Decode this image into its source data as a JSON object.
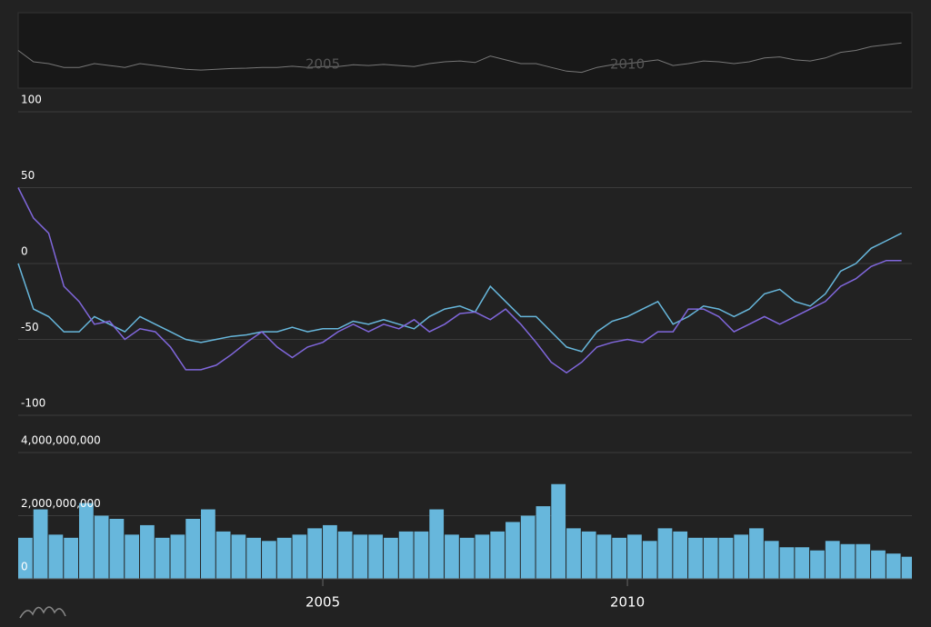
{
  "chart_data": [
    {
      "type": "line",
      "x": [
        2000,
        2000.25,
        2000.5,
        2000.75,
        2001,
        2001.25,
        2001.5,
        2001.75,
        2002,
        2002.25,
        2002.5,
        2002.75,
        2003,
        2003.25,
        2003.5,
        2003.75,
        2004,
        2004.25,
        2004.5,
        2004.75,
        2005,
        2005.25,
        2005.5,
        2005.75,
        2006,
        2006.25,
        2006.5,
        2006.75,
        2007,
        2007.25,
        2007.5,
        2007.75,
        2008,
        2008.25,
        2008.5,
        2008.75,
        2009,
        2009.25,
        2009.5,
        2009.75,
        2010,
        2010.25,
        2010.5,
        2010.75,
        2011,
        2011.25,
        2011.5,
        2011.75,
        2012,
        2012.25,
        2012.5,
        2012.75,
        2013,
        2013.25,
        2013.5,
        2013.75,
        2014,
        2014.25,
        2014.5
      ],
      "xlim": [
        2000,
        2014.67
      ],
      "xticks": [
        2005,
        2010
      ],
      "ylim": [
        -100,
        100
      ],
      "yticks": [
        -100,
        -50,
        0,
        50,
        100
      ],
      "grid": true,
      "series": [
        {
          "color": "#67b7dc",
          "values": [
            0,
            -30,
            -35,
            -45,
            -45,
            -35,
            -40,
            -45,
            -35,
            -40,
            -45,
            -50,
            -52,
            -50,
            -48,
            -47,
            -45,
            -45,
            -42,
            -45,
            -43,
            -43,
            -38,
            -40,
            -37,
            -40,
            -43,
            -35,
            -30,
            -28,
            -32,
            -15,
            -25,
            -35,
            -35,
            -45,
            -55,
            -58,
            -45,
            -38,
            -35,
            -30,
            -25,
            -40,
            -35,
            -28,
            -30,
            -35,
            -30,
            -20,
            -17,
            -25,
            -28,
            -20,
            -5,
            0,
            10,
            15,
            20
          ]
        },
        {
          "color": "#8067dc",
          "values": [
            50,
            30,
            20,
            -15,
            -25,
            -40,
            -38,
            -50,
            -43,
            -45,
            -55,
            -70,
            -70,
            -67,
            -60,
            -52,
            -45,
            -55,
            -62,
            -55,
            -52,
            -45,
            -40,
            -45,
            -40,
            -43,
            -37,
            -45,
            -40,
            -33,
            -32,
            -37,
            -30,
            -40,
            -52,
            -65,
            -72,
            -65,
            -55,
            -52,
            -50,
            -52,
            -45,
            -45,
            -30,
            -30,
            -35,
            -45,
            -40,
            -35,
            -40,
            -35,
            -30,
            -25,
            -15,
            -10,
            -2,
            2,
            2
          ]
        }
      ]
    },
    {
      "type": "bar",
      "x": [
        2000,
        2000.25,
        2000.5,
        2000.75,
        2001,
        2001.25,
        2001.5,
        2001.75,
        2002,
        2002.25,
        2002.5,
        2002.75,
        2003,
        2003.25,
        2003.5,
        2003.75,
        2004,
        2004.25,
        2004.5,
        2004.75,
        2005,
        2005.25,
        2005.5,
        2005.75,
        2006,
        2006.25,
        2006.5,
        2006.75,
        2007,
        2007.25,
        2007.5,
        2007.75,
        2008,
        2008.25,
        2008.5,
        2008.75,
        2009,
        2009.25,
        2009.5,
        2009.75,
        2010,
        2010.25,
        2010.5,
        2010.75,
        2011,
        2011.25,
        2011.5,
        2011.75,
        2012,
        2012.25,
        2012.5,
        2012.75,
        2013,
        2013.25,
        2013.5,
        2013.75,
        2014,
        2014.25,
        2014.5
      ],
      "xlim": [
        2000,
        2014.67
      ],
      "xticks": [
        2005,
        2010
      ],
      "ylim": [
        0,
        4000000000
      ],
      "yticks": [
        0,
        {
          "value": 2000000000,
          "label": "2,000,000,000"
        },
        {
          "value": 4000000000,
          "label": "4,000,000,000"
        }
      ],
      "color": "#67b7dc",
      "values": [
        1300000000,
        2200000000,
        1400000000,
        1300000000,
        2400000000,
        2000000000,
        1900000000,
        1400000000,
        1700000000,
        1300000000,
        1400000000,
        1900000000,
        2200000000,
        1500000000,
        1400000000,
        1300000000,
        1200000000,
        1300000000,
        1400000000,
        1600000000,
        1700000000,
        1500000000,
        1400000000,
        1400000000,
        1300000000,
        1500000000,
        1500000000,
        2200000000,
        1400000000,
        1300000000,
        1400000000,
        1500000000,
        1800000000,
        2000000000,
        2300000000,
        3000000000,
        1600000000,
        1500000000,
        1400000000,
        1300000000,
        1400000000,
        1200000000,
        1600000000,
        1500000000,
        1300000000,
        1300000000,
        1300000000,
        1400000000,
        1600000000,
        1200000000,
        1000000000,
        1000000000,
        900000000,
        1200000000,
        1100000000,
        1100000000,
        900000000,
        800000000,
        700000000
      ]
    }
  ]
}
